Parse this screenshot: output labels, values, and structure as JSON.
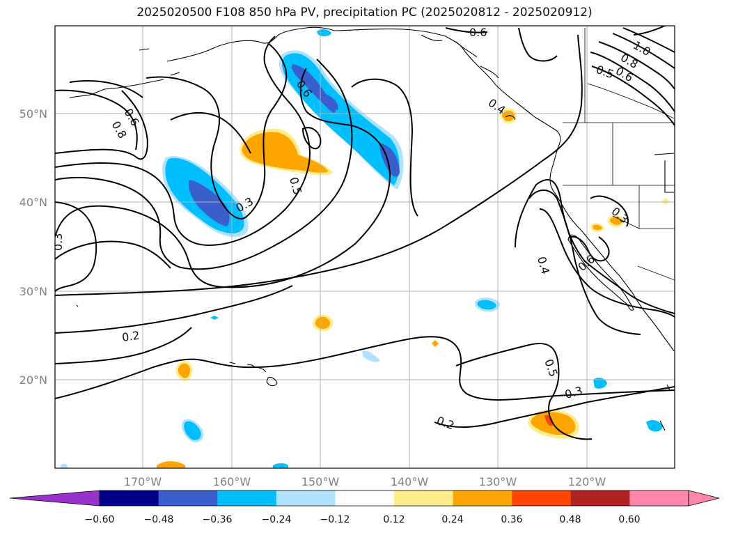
{
  "title": "2025020500 F108 850 hPa PV, precipitation PC (2025020812 - 2025020912)",
  "lat_labels": [
    "50°N",
    "40°N",
    "30°N",
    "20°N"
  ],
  "lon_labels": [
    "170°W",
    "160°W",
    "150°W",
    "140°W",
    "130°W",
    "120°W"
  ],
  "colorbar": {
    "colors": [
      "#9932cc",
      "#00008b",
      "#3a5fcd",
      "#00bfff",
      "#b0e2ff",
      "#ffffff",
      "#ffec8b",
      "#ffa500",
      "#ff4500",
      "#b22222",
      "#ff88aa",
      "#ff88aa"
    ],
    "under_color": "#9932cc",
    "over_color": "#ff88aa",
    "ticks": [
      "−0.60",
      "−0.48",
      "−0.36",
      "−0.24",
      "−0.12",
      "0.12",
      "0.24",
      "0.36",
      "0.48",
      "0.60"
    ]
  },
  "contour_labels": [
    "0.6",
    "1.0",
    "0.8",
    "0.5",
    "0.6",
    "0.6",
    "0.4",
    "0.8",
    "0.6",
    "0.5",
    "0.3",
    "0.3",
    "0.3",
    "0.4",
    "0.6",
    "0.5",
    "0.3",
    "0.2",
    "0.2"
  ]
}
